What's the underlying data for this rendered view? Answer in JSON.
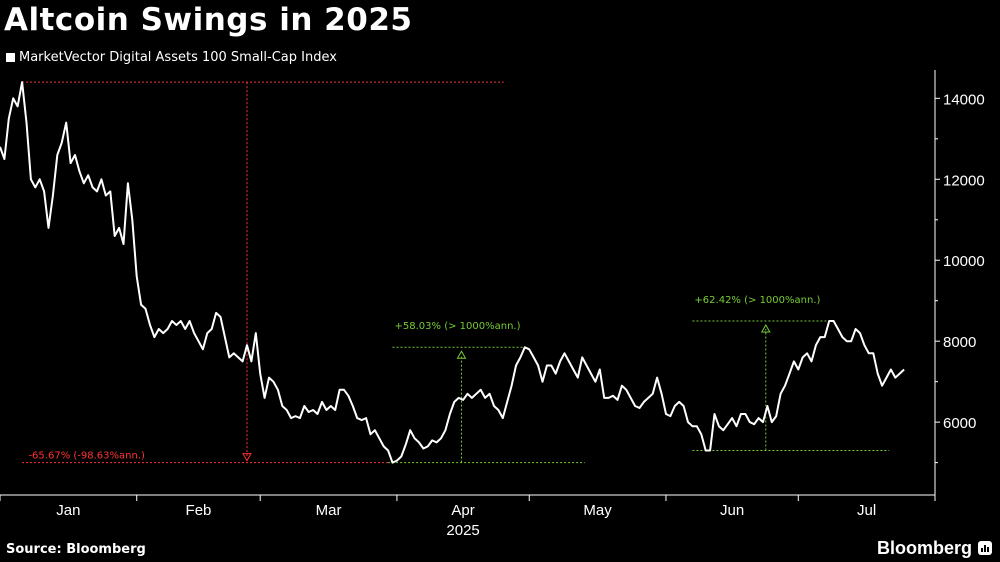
{
  "title": "Altcoin Swings in 2025",
  "source": "Source: Bloomberg",
  "brand": "Bloomberg",
  "chart_data": {
    "type": "line",
    "title": "Altcoin Swings in 2025",
    "xlabel": "2025",
    "ylabel": "",
    "ylim": [
      4200,
      14700
    ],
    "y_ticks": [
      "6000",
      "8000",
      "10000",
      "12000",
      "14000"
    ],
    "x_ticks": [
      "Jan",
      "Feb",
      "Mar",
      "Apr",
      "May",
      "Jun",
      "Jul"
    ],
    "x_range": [
      "2025-01-01",
      "2025-08-01"
    ],
    "axis_side": "right",
    "legend": "top-left",
    "grid": false,
    "colors": {
      "line": "#ffffff",
      "decline": "#ff3333",
      "gain": "#77cc33"
    },
    "series": [
      {
        "name": "MarketVector Digital Assets 100 Small-Cap Index",
        "x": [
          "2025-01-01",
          "2025-01-02",
          "2025-01-03",
          "2025-01-04",
          "2025-01-05",
          "2025-01-06",
          "2025-01-07",
          "2025-01-08",
          "2025-01-09",
          "2025-01-10",
          "2025-01-11",
          "2025-01-12",
          "2025-01-13",
          "2025-01-14",
          "2025-01-15",
          "2025-01-16",
          "2025-01-17",
          "2025-01-18",
          "2025-01-19",
          "2025-01-20",
          "2025-01-21",
          "2025-01-22",
          "2025-01-23",
          "2025-01-24",
          "2025-01-25",
          "2025-01-26",
          "2025-01-27",
          "2025-01-28",
          "2025-01-29",
          "2025-01-30",
          "2025-01-31",
          "2025-02-01",
          "2025-02-02",
          "2025-02-03",
          "2025-02-04",
          "2025-02-05",
          "2025-02-06",
          "2025-02-07",
          "2025-02-08",
          "2025-02-09",
          "2025-02-10",
          "2025-02-11",
          "2025-02-12",
          "2025-02-13",
          "2025-02-14",
          "2025-02-15",
          "2025-02-16",
          "2025-02-17",
          "2025-02-18",
          "2025-02-19",
          "2025-02-20",
          "2025-02-21",
          "2025-02-22",
          "2025-02-23",
          "2025-02-24",
          "2025-02-25",
          "2025-02-26",
          "2025-02-27",
          "2025-02-28",
          "2025-03-01",
          "2025-03-02",
          "2025-03-03",
          "2025-03-04",
          "2025-03-05",
          "2025-03-06",
          "2025-03-07",
          "2025-03-08",
          "2025-03-09",
          "2025-03-10",
          "2025-03-11",
          "2025-03-12",
          "2025-03-13",
          "2025-03-14",
          "2025-03-15",
          "2025-03-16",
          "2025-03-17",
          "2025-03-18",
          "2025-03-19",
          "2025-03-20",
          "2025-03-21",
          "2025-03-22",
          "2025-03-23",
          "2025-03-24",
          "2025-03-25",
          "2025-03-26",
          "2025-03-27",
          "2025-03-28",
          "2025-03-29",
          "2025-03-30",
          "2025-03-31",
          "2025-04-01",
          "2025-04-02",
          "2025-04-03",
          "2025-04-04",
          "2025-04-05",
          "2025-04-06",
          "2025-04-07",
          "2025-04-08",
          "2025-04-09",
          "2025-04-10",
          "2025-04-11",
          "2025-04-12",
          "2025-04-13",
          "2025-04-14",
          "2025-04-15",
          "2025-04-16",
          "2025-04-17",
          "2025-04-18",
          "2025-04-19",
          "2025-04-20",
          "2025-04-21",
          "2025-04-22",
          "2025-04-23",
          "2025-04-24",
          "2025-04-25",
          "2025-04-26",
          "2025-04-27",
          "2025-04-28",
          "2025-04-29",
          "2025-04-30",
          "2025-05-01",
          "2025-05-02",
          "2025-05-03",
          "2025-05-04",
          "2025-05-05",
          "2025-05-06",
          "2025-05-07",
          "2025-05-08",
          "2025-05-09",
          "2025-05-10",
          "2025-05-11",
          "2025-05-12",
          "2025-05-13",
          "2025-05-14",
          "2025-05-15",
          "2025-05-16",
          "2025-05-17",
          "2025-05-18",
          "2025-05-19",
          "2025-05-20",
          "2025-05-21",
          "2025-05-22",
          "2025-05-23",
          "2025-05-24",
          "2025-05-25",
          "2025-05-26",
          "2025-05-27",
          "2025-05-28",
          "2025-05-29",
          "2025-05-30",
          "2025-05-31",
          "2025-06-01",
          "2025-06-02",
          "2025-06-03",
          "2025-06-04",
          "2025-06-05",
          "2025-06-06",
          "2025-06-07",
          "2025-06-08",
          "2025-06-09",
          "2025-06-10",
          "2025-06-11",
          "2025-06-12",
          "2025-06-13",
          "2025-06-14",
          "2025-06-15",
          "2025-06-16",
          "2025-06-17",
          "2025-06-18",
          "2025-06-19",
          "2025-06-20",
          "2025-06-21",
          "2025-06-22",
          "2025-06-23",
          "2025-06-24",
          "2025-06-25",
          "2025-06-26",
          "2025-06-27",
          "2025-06-28",
          "2025-06-29",
          "2025-06-30",
          "2025-07-01",
          "2025-07-02",
          "2025-07-03",
          "2025-07-04",
          "2025-07-05",
          "2025-07-06",
          "2025-07-07",
          "2025-07-08",
          "2025-07-09",
          "2025-07-10",
          "2025-07-11",
          "2025-07-12",
          "2025-07-13",
          "2025-07-14",
          "2025-07-15",
          "2025-07-16",
          "2025-07-17",
          "2025-07-18",
          "2025-07-19",
          "2025-07-20",
          "2025-07-21",
          "2025-07-22",
          "2025-07-23",
          "2025-07-24",
          "2025-07-25"
        ],
        "values": [
          12800,
          12500,
          13500,
          14000,
          13800,
          14400,
          13400,
          12000,
          11800,
          12000,
          11700,
          10800,
          11600,
          12600,
          12900,
          13400,
          12400,
          12600,
          12200,
          11900,
          12100,
          11800,
          11700,
          12000,
          11600,
          11700,
          10600,
          10800,
          10400,
          11900,
          11000,
          9600,
          8900,
          8800,
          8400,
          8100,
          8300,
          8200,
          8300,
          8500,
          8400,
          8500,
          8300,
          8500,
          8200,
          8000,
          7800,
          8200,
          8300,
          8700,
          8600,
          8100,
          7600,
          7700,
          7600,
          7500,
          7900,
          7500,
          8200,
          7200,
          6600,
          7100,
          7000,
          6800,
          6400,
          6300,
          6100,
          6150,
          6100,
          6400,
          6250,
          6300,
          6200,
          6500,
          6300,
          6400,
          6300,
          6800,
          6800,
          6650,
          6400,
          6100,
          6050,
          6100,
          5700,
          5800,
          5600,
          5400,
          5300,
          5000,
          5050,
          5150,
          5450,
          5800,
          5600,
          5500,
          5350,
          5400,
          5550,
          5500,
          5600,
          5800,
          6200,
          6500,
          6600,
          6550,
          6700,
          6600,
          6700,
          6800,
          6600,
          6700,
          6400,
          6300,
          6100,
          6500,
          6900,
          7400,
          7600,
          7850,
          7800,
          7600,
          7400,
          7000,
          7400,
          7400,
          7200,
          7500,
          7700,
          7500,
          7300,
          7100,
          7600,
          7400,
          7200,
          7000,
          7300,
          6600,
          6600,
          6650,
          6550,
          6900,
          6800,
          6600,
          6400,
          6350,
          6500,
          6600,
          6700,
          7100,
          6700,
          6200,
          6150,
          6400,
          6500,
          6400,
          6000,
          5900,
          5900,
          5700,
          5300,
          5300,
          6200,
          5900,
          5800,
          5950,
          6100,
          5900,
          6200,
          6200,
          6000,
          5950,
          6100,
          6000,
          6400,
          6000,
          6150,
          6700,
          6900,
          7200,
          7500,
          7300,
          7600,
          7700,
          7500,
          7900,
          8100,
          8100,
          8500,
          8500,
          8300,
          8100,
          8000,
          8000,
          8300,
          8200,
          7900,
          7700,
          7700,
          7200,
          6900,
          7100,
          7300,
          7100,
          7200,
          7300
        ]
      }
    ],
    "annotations": [
      {
        "text": "-65.67% (-98.63%ann.)",
        "kind": "decline",
        "from_date": "2025-01-06",
        "from_value": 14400,
        "to_date": "2025-03-30",
        "to_value": 5000,
        "label_date": "2025-01-07",
        "label_value": 5000
      },
      {
        "text": "+58.03% (> 1000%ann.)",
        "kind": "gain",
        "from_date": "2025-03-30",
        "from_value": 5000,
        "to_date": "2025-04-30",
        "to_value": 7850,
        "label_date": "2025-03-31",
        "label_value": 8200
      },
      {
        "text": "+62.42% (> 1000%ann.)",
        "kind": "gain",
        "from_date": "2025-06-07",
        "from_value": 5300,
        "to_date": "2025-07-08",
        "to_value": 8500,
        "label_date": "2025-06-07",
        "label_value": 8850
      }
    ]
  }
}
